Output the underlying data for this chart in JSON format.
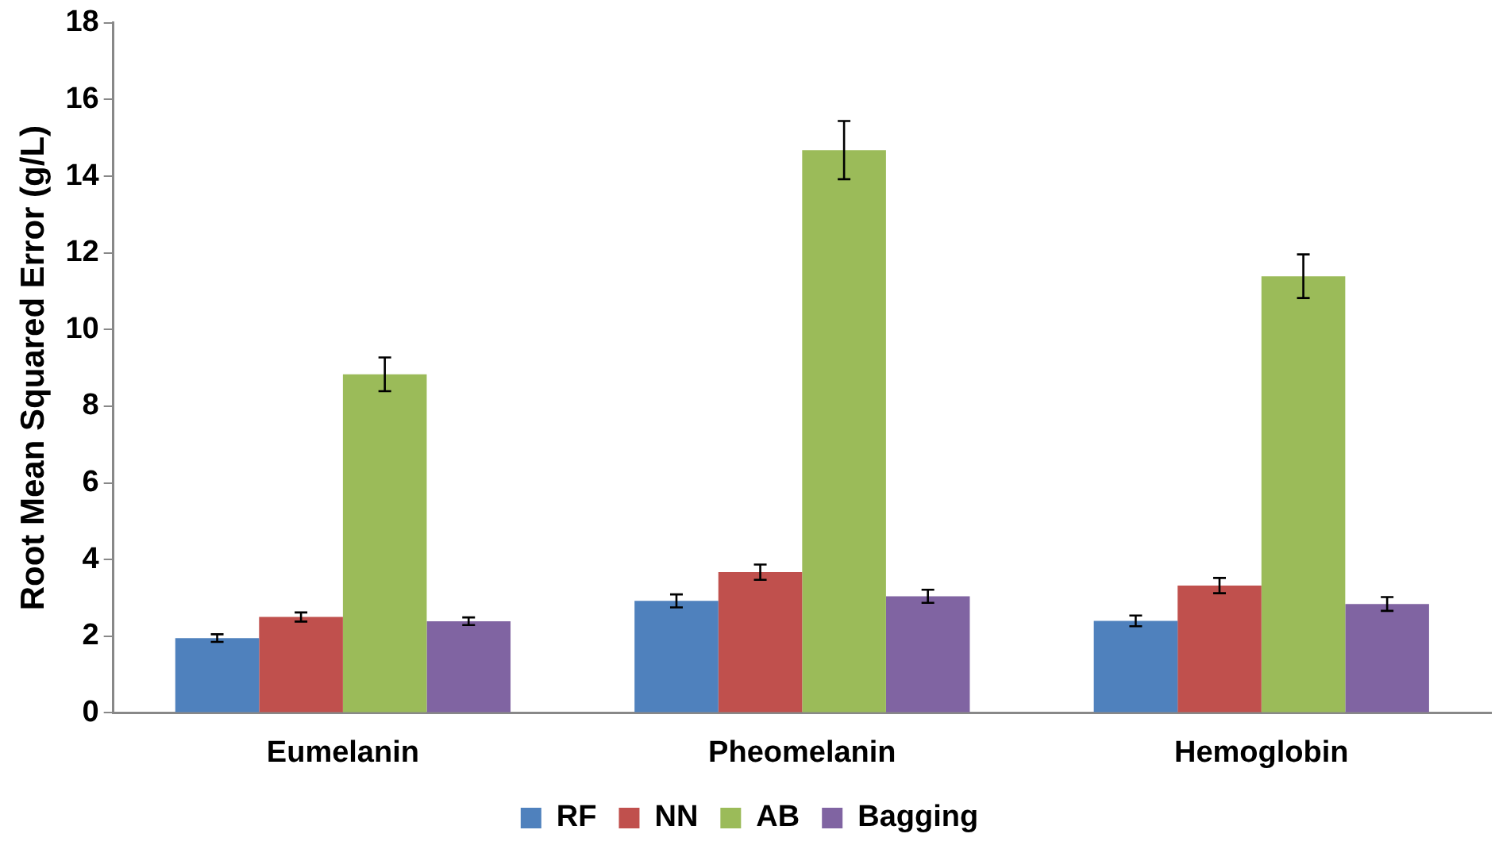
{
  "chart_data": {
    "type": "bar",
    "ylabel": "Root Mean Squared Error (g/L)",
    "categories": [
      "Eumelanin",
      "Pheomelanin",
      "Hemoglobin"
    ],
    "series": [
      {
        "name": "RF",
        "color": "#4f81bd",
        "values": [
          1.95,
          2.92,
          2.4
        ],
        "errors": [
          0.1,
          0.17,
          0.14
        ]
      },
      {
        "name": "NN",
        "color": "#c0504d",
        "values": [
          2.5,
          3.67,
          3.32
        ],
        "errors": [
          0.12,
          0.2,
          0.2
        ]
      },
      {
        "name": "AB",
        "color": "#9bbb59",
        "values": [
          8.83,
          14.68,
          11.39
        ],
        "errors": [
          0.44,
          0.76,
          0.57
        ]
      },
      {
        "name": "Bagging",
        "color": "#8064a2",
        "values": [
          2.39,
          3.04,
          2.84
        ],
        "errors": [
          0.1,
          0.17,
          0.18
        ]
      }
    ],
    "ylim": [
      0,
      18
    ],
    "yticks": [
      0,
      2,
      4,
      6,
      8,
      10,
      12,
      14,
      16,
      18
    ],
    "grid": false,
    "legend": "bottom"
  }
}
